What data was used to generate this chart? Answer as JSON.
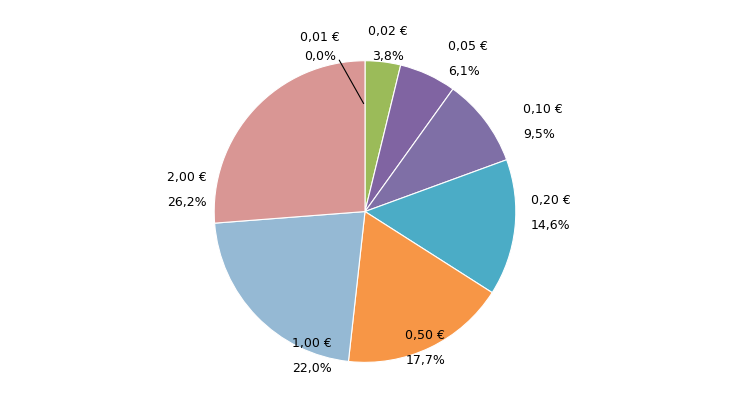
{
  "labels": [
    "0,01 €",
    "0,02 €",
    "0,05 €",
    "0,10 €",
    "0,20 €",
    "0,50 €",
    "1,00 €",
    "2,00 €"
  ],
  "percentages": [
    0.0,
    3.8,
    6.1,
    9.5,
    14.6,
    17.7,
    22.0,
    26.2
  ],
  "colors": [
    "#c0504d",
    "#9bbb59",
    "#8064a2",
    "#4bacc6",
    "#f79646",
    "#93c4de",
    "#d99694",
    "#d99694"
  ],
  "figsize": [
    7.3,
    4.1
  ],
  "dpi": 100,
  "startangle": 90,
  "fontsize": 9
}
